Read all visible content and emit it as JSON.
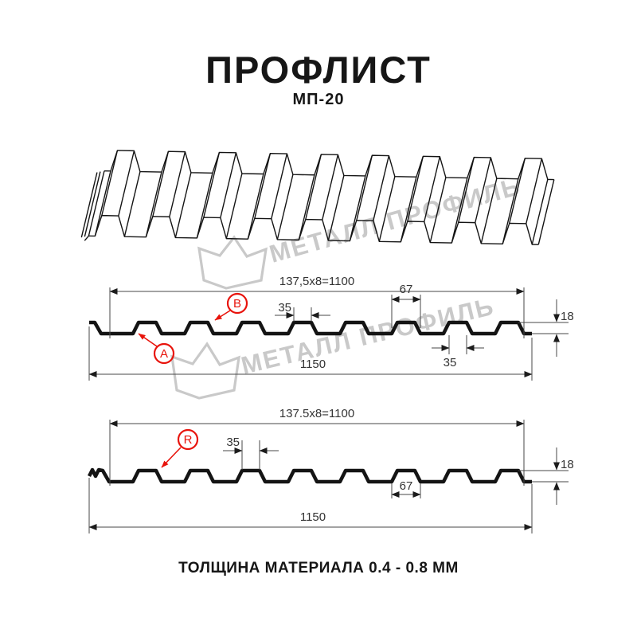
{
  "title": "ПРОФЛИСТ",
  "subtitle": "МП-20",
  "footer_note": "ТОЛЩИНА МАТЕРИАЛА 0.4 - 0.8 ММ",
  "watermark": {
    "text": "МЕТАЛЛ ПРОФИЛЬ"
  },
  "colors": {
    "accent_red": "#e8130b",
    "line": "#141414",
    "ink": "#161616",
    "watermark": "#c9c9c9"
  },
  "diagram1": {
    "pitch_total": "137,5x8=1100",
    "crest_top": "35",
    "rib_base": "67",
    "profile_height": "18",
    "crest_bottom": "35",
    "overall_width": "1150",
    "callout_a": "A",
    "callout_b": "B"
  },
  "diagram2": {
    "pitch_total": "137.5x8=1100",
    "crest_top": "35",
    "rib_base": "67",
    "profile_height": "18",
    "overall_width": "1150",
    "callout_r": "R"
  }
}
